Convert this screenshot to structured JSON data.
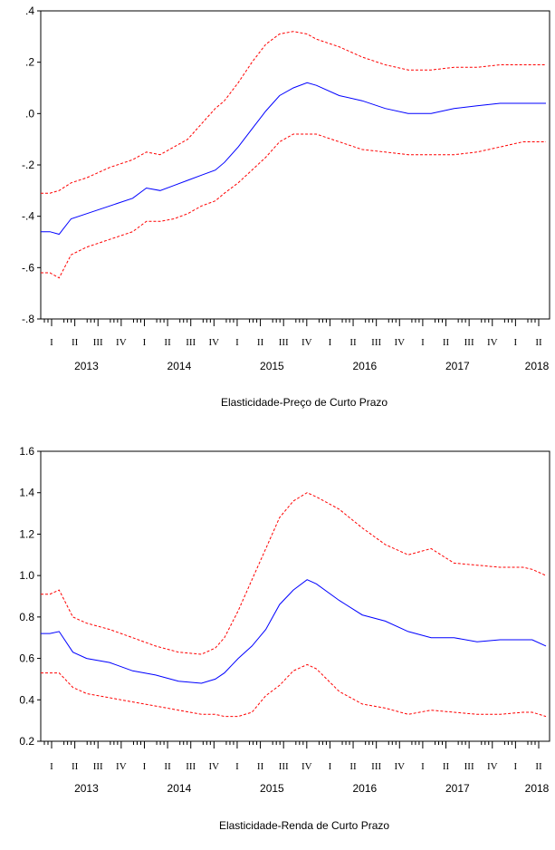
{
  "chart_data": [
    {
      "type": "line",
      "title": "Elasticidade-Preço de Curto Prazo",
      "ylim": [
        -0.8,
        0.4
      ],
      "yticks": [
        -0.8,
        -0.6,
        -0.4,
        -0.2,
        0.0,
        0.2,
        0.4
      ],
      "ytick_labels": [
        "-.8",
        "-.6",
        "-.4",
        "-.2",
        ".0",
        ".2",
        ".4"
      ],
      "quarter_labels": [
        "I",
        "II",
        "III",
        "IV",
        "I",
        "II",
        "III",
        "IV",
        "I",
        "II",
        "III",
        "IV",
        "I",
        "II",
        "III",
        "IV",
        "I",
        "II",
        "III",
        "IV",
        "I",
        "II"
      ],
      "year_labels": [
        "2013",
        "2014",
        "2015",
        "2016",
        "2017",
        "2018"
      ],
      "x_range": [
        2013.0,
        2018.5
      ],
      "grid": false,
      "series": [
        {
          "role": "estimate",
          "color": "#0000ff",
          "dash": "solid",
          "x": [
            2013.0,
            2013.1,
            2013.2,
            2013.33,
            2013.5,
            2013.75,
            2014.0,
            2014.15,
            2014.3,
            2014.45,
            2014.6,
            2014.75,
            2014.9,
            2015.0,
            2015.15,
            2015.3,
            2015.45,
            2015.6,
            2015.75,
            2015.9,
            2016.0,
            2016.25,
            2016.5,
            2016.75,
            2017.0,
            2017.25,
            2017.5,
            2017.75,
            2018.0,
            2018.25,
            2018.35,
            2018.5
          ],
          "y": [
            -0.46,
            -0.46,
            -0.47,
            -0.41,
            -0.39,
            -0.36,
            -0.33,
            -0.29,
            -0.3,
            -0.28,
            -0.26,
            -0.24,
            -0.22,
            -0.19,
            -0.13,
            -0.06,
            0.01,
            0.07,
            0.1,
            0.12,
            0.11,
            0.07,
            0.05,
            0.02,
            0.0,
            0.0,
            0.02,
            0.03,
            0.04,
            0.04,
            0.04,
            0.04
          ]
        },
        {
          "role": "upper band",
          "color": "#ff0000",
          "dash": "dashed",
          "x": [
            2013.0,
            2013.1,
            2013.2,
            2013.33,
            2013.5,
            2013.75,
            2014.0,
            2014.15,
            2014.3,
            2014.45,
            2014.6,
            2014.75,
            2014.9,
            2015.0,
            2015.15,
            2015.3,
            2015.45,
            2015.6,
            2015.75,
            2015.9,
            2016.0,
            2016.25,
            2016.5,
            2016.75,
            2017.0,
            2017.25,
            2017.5,
            2017.75,
            2018.0,
            2018.25,
            2018.35,
            2018.5
          ],
          "y": [
            -0.31,
            -0.31,
            -0.3,
            -0.27,
            -0.25,
            -0.21,
            -0.18,
            -0.15,
            -0.16,
            -0.13,
            -0.1,
            -0.04,
            0.02,
            0.05,
            0.12,
            0.2,
            0.27,
            0.31,
            0.32,
            0.31,
            0.29,
            0.26,
            0.22,
            0.19,
            0.17,
            0.17,
            0.18,
            0.18,
            0.19,
            0.19,
            0.19,
            0.19
          ]
        },
        {
          "role": "lower band",
          "color": "#ff0000",
          "dash": "dashed",
          "x": [
            2013.0,
            2013.1,
            2013.2,
            2013.33,
            2013.5,
            2013.75,
            2014.0,
            2014.15,
            2014.3,
            2014.45,
            2014.6,
            2014.75,
            2014.9,
            2015.0,
            2015.15,
            2015.3,
            2015.45,
            2015.6,
            2015.75,
            2015.9,
            2016.0,
            2016.25,
            2016.5,
            2016.75,
            2017.0,
            2017.25,
            2017.5,
            2017.75,
            2018.0,
            2018.25,
            2018.35,
            2018.5
          ],
          "y": [
            -0.62,
            -0.62,
            -0.64,
            -0.55,
            -0.52,
            -0.49,
            -0.46,
            -0.42,
            -0.42,
            -0.41,
            -0.39,
            -0.36,
            -0.34,
            -0.31,
            -0.27,
            -0.22,
            -0.17,
            -0.11,
            -0.08,
            -0.08,
            -0.08,
            -0.11,
            -0.14,
            -0.15,
            -0.16,
            -0.16,
            -0.16,
            -0.15,
            -0.13,
            -0.11,
            -0.11,
            -0.11
          ]
        }
      ]
    },
    {
      "type": "line",
      "title": "Elasticidade-Renda de Curto Prazo",
      "ylim": [
        0.2,
        1.6
      ],
      "yticks": [
        0.2,
        0.4,
        0.6,
        0.8,
        1.0,
        1.2,
        1.4,
        1.6
      ],
      "ytick_labels": [
        "0.2",
        "0.4",
        "0.6",
        "0.8",
        "1.0",
        "1.2",
        "1.4",
        "1.6"
      ],
      "quarter_labels": [
        "I",
        "II",
        "III",
        "IV",
        "I",
        "II",
        "III",
        "IV",
        "I",
        "II",
        "III",
        "IV",
        "I",
        "II",
        "III",
        "IV",
        "I",
        "II",
        "III",
        "IV",
        "I",
        "II"
      ],
      "year_labels": [
        "2013",
        "2014",
        "2015",
        "2016",
        "2017",
        "2018"
      ],
      "x_range": [
        2013.0,
        2018.5
      ],
      "grid": false,
      "series": [
        {
          "role": "estimate",
          "color": "#0000ff",
          "dash": "solid",
          "x": [
            2013.0,
            2013.1,
            2013.2,
            2013.35,
            2013.5,
            2013.75,
            2014.0,
            2014.25,
            2014.5,
            2014.75,
            2014.9,
            2015.0,
            2015.15,
            2015.3,
            2015.45,
            2015.6,
            2015.75,
            2015.9,
            2016.0,
            2016.25,
            2016.5,
            2016.75,
            2017.0,
            2017.25,
            2017.5,
            2017.75,
            2018.0,
            2018.25,
            2018.35,
            2018.5
          ],
          "y": [
            0.72,
            0.72,
            0.73,
            0.63,
            0.6,
            0.58,
            0.54,
            0.52,
            0.49,
            0.48,
            0.5,
            0.53,
            0.6,
            0.66,
            0.74,
            0.86,
            0.93,
            0.98,
            0.96,
            0.88,
            0.81,
            0.78,
            0.73,
            0.7,
            0.7,
            0.68,
            0.69,
            0.69,
            0.69,
            0.66
          ]
        },
        {
          "role": "upper band",
          "color": "#ff0000",
          "dash": "dashed",
          "x": [
            2013.0,
            2013.1,
            2013.2,
            2013.35,
            2013.5,
            2013.75,
            2014.0,
            2014.25,
            2014.5,
            2014.75,
            2014.9,
            2015.0,
            2015.15,
            2015.3,
            2015.45,
            2015.6,
            2015.75,
            2015.9,
            2016.0,
            2016.25,
            2016.5,
            2016.75,
            2017.0,
            2017.25,
            2017.5,
            2017.75,
            2018.0,
            2018.25,
            2018.35,
            2018.5
          ],
          "y": [
            0.91,
            0.91,
            0.93,
            0.8,
            0.77,
            0.74,
            0.7,
            0.66,
            0.63,
            0.62,
            0.65,
            0.7,
            0.83,
            0.98,
            1.13,
            1.28,
            1.36,
            1.4,
            1.38,
            1.32,
            1.23,
            1.15,
            1.1,
            1.13,
            1.06,
            1.05,
            1.04,
            1.04,
            1.03,
            1.0
          ]
        },
        {
          "role": "lower band",
          "color": "#ff0000",
          "dash": "dashed",
          "x": [
            2013.0,
            2013.1,
            2013.2,
            2013.35,
            2013.5,
            2013.75,
            2014.0,
            2014.25,
            2014.5,
            2014.75,
            2014.9,
            2015.0,
            2015.15,
            2015.3,
            2015.45,
            2015.6,
            2015.75,
            2015.9,
            2016.0,
            2016.25,
            2016.5,
            2016.75,
            2017.0,
            2017.25,
            2017.5,
            2017.75,
            2018.0,
            2018.25,
            2018.35,
            2018.5
          ],
          "y": [
            0.53,
            0.53,
            0.53,
            0.46,
            0.43,
            0.41,
            0.39,
            0.37,
            0.35,
            0.33,
            0.33,
            0.32,
            0.32,
            0.34,
            0.42,
            0.47,
            0.54,
            0.57,
            0.55,
            0.44,
            0.38,
            0.36,
            0.33,
            0.35,
            0.34,
            0.33,
            0.33,
            0.34,
            0.34,
            0.32
          ]
        }
      ]
    }
  ]
}
